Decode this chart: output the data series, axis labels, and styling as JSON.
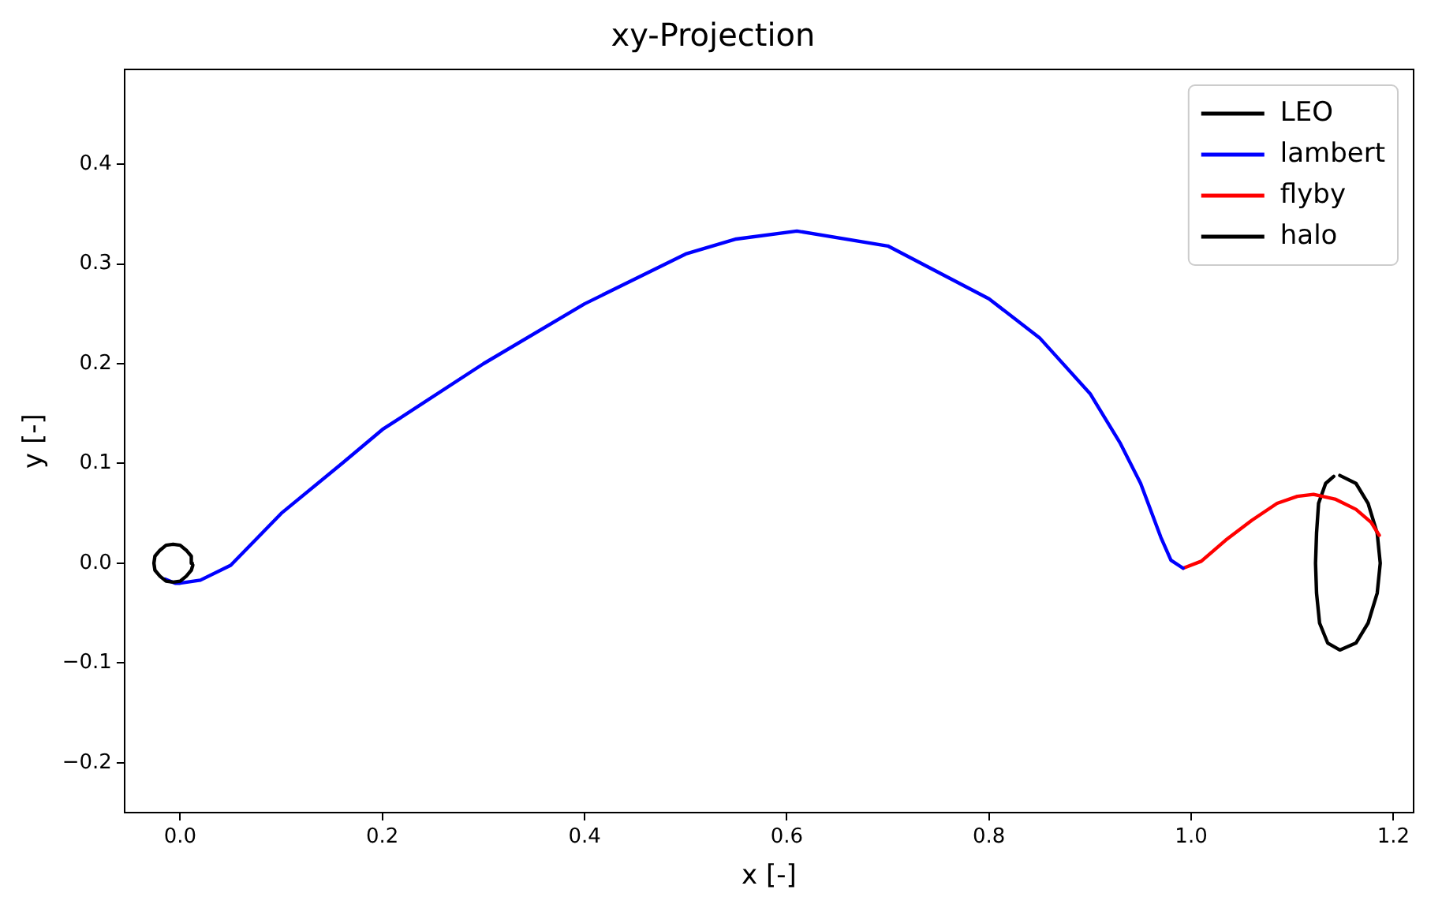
{
  "chart_data": {
    "type": "line",
    "title": "xy-Projection",
    "xlabel": "x [-]",
    "ylabel": "y [-]",
    "xlim": [
      -0.055,
      1.22
    ],
    "ylim": [
      -0.25,
      0.495
    ],
    "xticks": [
      {
        "value": 0,
        "label": "0.0"
      },
      {
        "value": 0.2,
        "label": "0.2"
      },
      {
        "value": 0.4,
        "label": "0.4"
      },
      {
        "value": 0.6,
        "label": "0.6"
      },
      {
        "value": 0.8,
        "label": "0.8"
      },
      {
        "value": 1,
        "label": "1.0"
      },
      {
        "value": 1.2,
        "label": "1.2"
      }
    ],
    "yticks": [
      {
        "value": -0.2,
        "label": "−0.2"
      },
      {
        "value": -0.1,
        "label": "−0.1"
      },
      {
        "value": 0,
        "label": "0.0"
      },
      {
        "value": 0.1,
        "label": "0.1"
      },
      {
        "value": 0.2,
        "label": "0.2"
      },
      {
        "value": 0.3,
        "label": "0.3"
      },
      {
        "value": 0.4,
        "label": "0.4"
      }
    ],
    "grid": false,
    "legend": "top right",
    "marker": "none",
    "line_style": "solid",
    "series": [
      {
        "name": "LEO",
        "color": "#000000",
        "x": [
          0.012,
          0.011,
          0.006,
          0.0,
          -0.007,
          -0.014,
          -0.02,
          -0.025,
          -0.026,
          -0.025,
          -0.02,
          -0.014,
          -0.007,
          0.0,
          0.006,
          0.011,
          0.0125
        ],
        "values": [
          0.0,
          0.007,
          0.013,
          0.018,
          0.019,
          0.018,
          0.013,
          0.007,
          0.0,
          -0.007,
          -0.013,
          -0.018,
          -0.019,
          -0.018,
          -0.013,
          -0.007,
          -0.002
        ]
      },
      {
        "name": "lambert",
        "color": "#0000ff",
        "x": [
          -0.015,
          -0.005,
          0.0,
          0.02,
          0.05,
          0.1,
          0.16,
          0.2,
          0.3,
          0.4,
          0.5,
          0.55,
          0.61,
          0.7,
          0.8,
          0.85,
          0.9,
          0.93,
          0.95,
          0.97,
          0.98,
          0.992
        ],
        "values": [
          -0.016,
          -0.02,
          -0.02,
          -0.017,
          -0.002,
          0.05,
          0.1,
          0.134,
          0.2,
          0.26,
          0.31,
          0.325,
          0.333,
          0.318,
          0.265,
          0.226,
          0.17,
          0.12,
          0.08,
          0.026,
          0.003,
          -0.005
        ]
      },
      {
        "name": "flyby",
        "color": "#ff0000",
        "x": [
          0.992,
          1.01,
          1.034,
          1.06,
          1.085,
          1.105,
          1.121,
          1.143,
          1.163,
          1.178,
          1.186
        ],
        "values": [
          -0.005,
          0.002,
          0.023,
          0.043,
          0.06,
          0.067,
          0.069,
          0.064,
          0.054,
          0.041,
          0.028
        ]
      },
      {
        "name": "halo",
        "color": "#000000",
        "x": [
          1.147,
          1.163,
          1.175,
          1.184,
          1.187,
          1.184,
          1.175,
          1.163,
          1.147,
          1.135,
          1.127,
          1.124,
          1.123,
          1.124,
          1.126,
          1.133,
          1.141
        ],
        "values": [
          0.088,
          0.08,
          0.06,
          0.03,
          0.0,
          -0.03,
          -0.06,
          -0.08,
          -0.087,
          -0.08,
          -0.06,
          -0.03,
          0.0,
          0.03,
          0.06,
          0.08,
          0.087
        ]
      }
    ]
  }
}
